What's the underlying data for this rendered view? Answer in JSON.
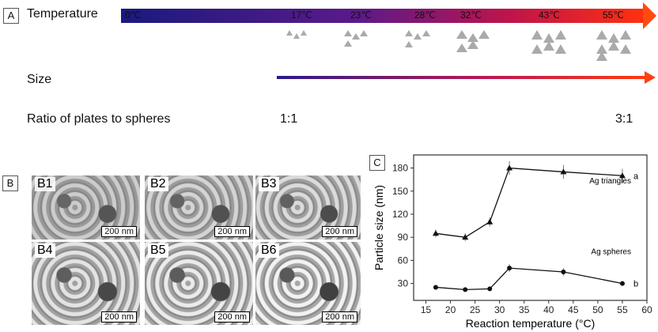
{
  "panel_a": {
    "label": "A",
    "temperature_label": "Temperature",
    "temps": [
      "0℃",
      "17℃",
      "23℃",
      "28℃",
      "32℃",
      "43℃",
      "55℃"
    ],
    "size_label": "Size",
    "ratio_label": "Ratio of plates to spheres",
    "ratio_start": "1:1",
    "ratio_end": "3:1"
  },
  "panel_b": {
    "label": "B",
    "images": [
      {
        "label": "B1",
        "scale": "200 nm"
      },
      {
        "label": "B2",
        "scale": "200 nm"
      },
      {
        "label": "B3",
        "scale": "200 nm"
      },
      {
        "label": "B4",
        "scale": "200 nm"
      },
      {
        "label": "B5",
        "scale": "200 nm"
      },
      {
        "label": "B6",
        "scale": "200 nm"
      }
    ]
  },
  "panel_c": {
    "label": "C"
  },
  "chart_data": {
    "type": "line",
    "xlabel": "Reaction temperature (°C)",
    "ylabel": "Particle size (nm)",
    "xlim": [
      12.5,
      60
    ],
    "ylim": [
      8,
      197
    ],
    "xticks": [
      15,
      20,
      25,
      30,
      35,
      40,
      45,
      50,
      55,
      60
    ],
    "yticks": [
      30,
      60,
      90,
      120,
      150,
      180
    ],
    "x": [
      17,
      23,
      28,
      32,
      43,
      55
    ],
    "series": [
      {
        "name": "Ag triangles",
        "tag": "a",
        "marker": "triangle",
        "values": [
          95,
          90,
          110,
          180,
          175,
          170
        ],
        "errors": [
          5,
          5,
          6,
          9,
          9,
          9
        ]
      },
      {
        "name": "Ag spheres",
        "tag": "b",
        "marker": "circle",
        "values": [
          25,
          22,
          23,
          50,
          45,
          30
        ],
        "errors": [
          3,
          2,
          2,
          5,
          5,
          3
        ]
      }
    ]
  }
}
